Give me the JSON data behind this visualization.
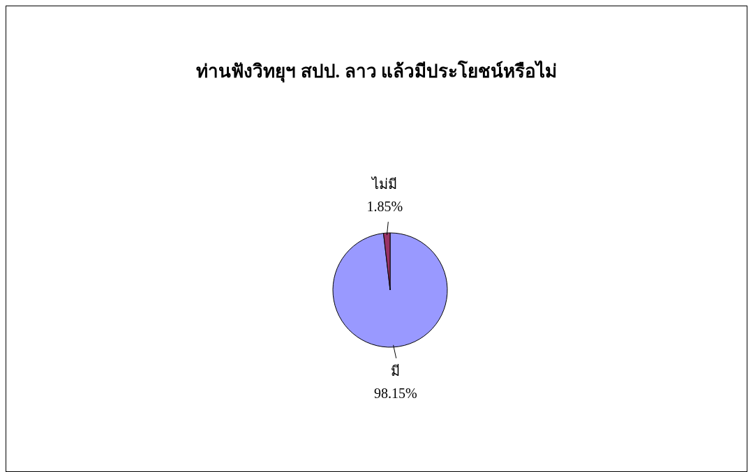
{
  "chart_data": {
    "type": "pie",
    "title": "ท่านฟังวิทยุฯ สปป. ลาว แล้วมีประโยชน์หรือไม่",
    "categories": [
      "มี",
      "ไม่มี"
    ],
    "values": [
      98.15,
      1.85
    ],
    "colors": [
      "#9999ff",
      "#993366"
    ],
    "value_labels": [
      "98.15%",
      "1.85%"
    ],
    "legend": false
  }
}
